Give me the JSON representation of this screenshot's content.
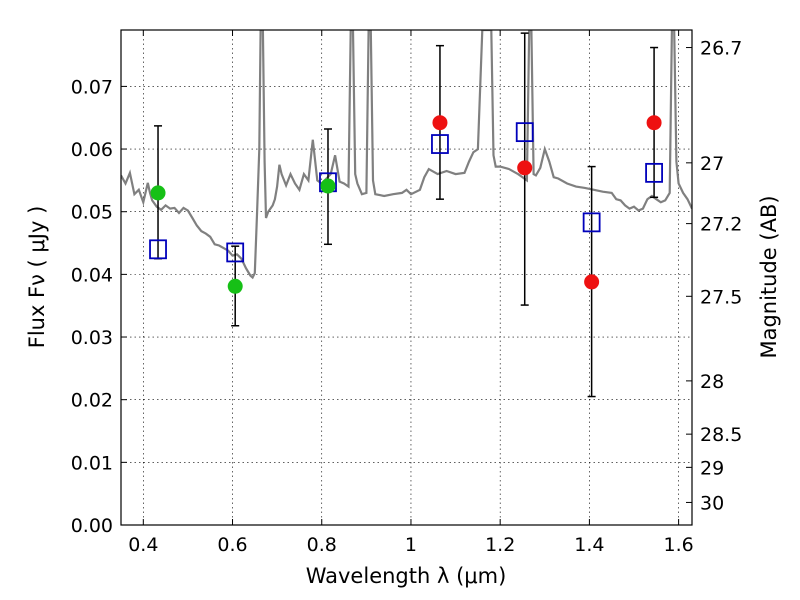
{
  "chart_data": {
    "type": "scatter",
    "xlabel": "Wavelength  λ (μm)",
    "ylabel": "Flux  Fν  ( μJy )",
    "ylabel_right": "Magnitude (AB)",
    "xlim": [
      0.35,
      1.63
    ],
    "ylim": [
      0.0,
      0.079
    ],
    "grid": true,
    "x_ticks": [
      0.4,
      0.6,
      0.8,
      1.0,
      1.2,
      1.4,
      1.6
    ],
    "x_tick_labels": [
      "0.4",
      "0.6",
      "0.8",
      "1",
      "1.2",
      "1.4",
      "1.6"
    ],
    "y_ticks": [
      0.0,
      0.01,
      0.02,
      0.03,
      0.04,
      0.05,
      0.06,
      0.07
    ],
    "y_tick_labels": [
      "0.00",
      "0.01",
      "0.02",
      "0.03",
      "0.04",
      "0.05",
      "0.06",
      "0.07"
    ],
    "right_ticks": [
      {
        "label": "26.7",
        "flux": 0.0762
      },
      {
        "label": "27",
        "flux": 0.0578
      },
      {
        "label": "27.2",
        "flux": 0.0481
      },
      {
        "label": "27.5",
        "flux": 0.0365
      },
      {
        "label": "28",
        "flux": 0.023
      },
      {
        "label": "28.5",
        "flux": 0.0145
      },
      {
        "label": "29",
        "flux": 0.0092
      },
      {
        "label": "30",
        "flux": 0.0036
      }
    ],
    "series": [
      {
        "type": "line",
        "color": "#808080",
        "points": [
          [
            0.35,
            0.0558
          ],
          [
            0.36,
            0.0545
          ],
          [
            0.37,
            0.0562
          ],
          [
            0.38,
            0.0528
          ],
          [
            0.39,
            0.0535
          ],
          [
            0.4,
            0.0515
          ],
          [
            0.41,
            0.0546
          ],
          [
            0.415,
            0.053
          ],
          [
            0.42,
            0.0518
          ],
          [
            0.43,
            0.0508
          ],
          [
            0.44,
            0.0503
          ],
          [
            0.45,
            0.051
          ],
          [
            0.46,
            0.0505
          ],
          [
            0.47,
            0.0506
          ],
          [
            0.48,
            0.0498
          ],
          [
            0.49,
            0.0506
          ],
          [
            0.5,
            0.0502
          ],
          [
            0.51,
            0.049
          ],
          [
            0.52,
            0.0478
          ],
          [
            0.53,
            0.0469
          ],
          [
            0.54,
            0.0465
          ],
          [
            0.55,
            0.046
          ],
          [
            0.56,
            0.0448
          ],
          [
            0.57,
            0.0446
          ],
          [
            0.58,
            0.0442
          ],
          [
            0.59,
            0.0438
          ],
          [
            0.6,
            0.043
          ],
          [
            0.61,
            0.0432
          ],
          [
            0.62,
            0.0425
          ],
          [
            0.63,
            0.041
          ],
          [
            0.64,
            0.0398
          ],
          [
            0.645,
            0.0395
          ],
          [
            0.65,
            0.0402
          ],
          [
            0.655,
            0.05
          ],
          [
            0.66,
            0.06
          ],
          [
            0.663,
            0.079
          ],
          [
            0.668,
            0.079
          ],
          [
            0.672,
            0.058
          ],
          [
            0.675,
            0.049
          ],
          [
            0.68,
            0.05
          ],
          [
            0.69,
            0.051
          ],
          [
            0.695,
            0.052
          ],
          [
            0.7,
            0.054
          ],
          [
            0.705,
            0.0575
          ],
          [
            0.71,
            0.056
          ],
          [
            0.72,
            0.0542
          ],
          [
            0.73,
            0.056
          ],
          [
            0.74,
            0.0545
          ],
          [
            0.75,
            0.0535
          ],
          [
            0.76,
            0.056
          ],
          [
            0.77,
            0.055
          ],
          [
            0.78,
            0.0615
          ],
          [
            0.79,
            0.055
          ],
          [
            0.8,
            0.0545
          ],
          [
            0.82,
            0.056
          ],
          [
            0.83,
            0.059
          ],
          [
            0.84,
            0.0548
          ],
          [
            0.85,
            0.0545
          ],
          [
            0.86,
            0.054
          ],
          [
            0.865,
            0.079
          ],
          [
            0.87,
            0.079
          ],
          [
            0.875,
            0.056
          ],
          [
            0.88,
            0.0545
          ],
          [
            0.89,
            0.0528
          ],
          [
            0.9,
            0.053
          ],
          [
            0.905,
            0.079
          ],
          [
            0.91,
            0.079
          ],
          [
            0.915,
            0.055
          ],
          [
            0.92,
            0.0528
          ],
          [
            0.94,
            0.0525
          ],
          [
            0.96,
            0.0528
          ],
          [
            0.98,
            0.053
          ],
          [
            0.99,
            0.0535
          ],
          [
            1.0,
            0.0528
          ],
          [
            1.02,
            0.0535
          ],
          [
            1.03,
            0.0555
          ],
          [
            1.04,
            0.0568
          ],
          [
            1.06,
            0.056
          ],
          [
            1.08,
            0.0565
          ],
          [
            1.1,
            0.056
          ],
          [
            1.12,
            0.0562
          ],
          [
            1.13,
            0.058
          ],
          [
            1.14,
            0.0595
          ],
          [
            1.15,
            0.06
          ],
          [
            1.16,
            0.079
          ],
          [
            1.18,
            0.079
          ],
          [
            1.185,
            0.059
          ],
          [
            1.19,
            0.0572
          ],
          [
            1.2,
            0.0572
          ],
          [
            1.22,
            0.0568
          ],
          [
            1.24,
            0.056
          ],
          [
            1.25,
            0.0555
          ],
          [
            1.26,
            0.055
          ],
          [
            1.265,
            0.079
          ],
          [
            1.27,
            0.079
          ],
          [
            1.275,
            0.056
          ],
          [
            1.28,
            0.0558
          ],
          [
            1.29,
            0.057
          ],
          [
            1.3,
            0.06
          ],
          [
            1.31,
            0.058
          ],
          [
            1.32,
            0.0555
          ],
          [
            1.33,
            0.0553
          ],
          [
            1.35,
            0.0545
          ],
          [
            1.37,
            0.054
          ],
          [
            1.39,
            0.0538
          ],
          [
            1.41,
            0.0535
          ],
          [
            1.43,
            0.0532
          ],
          [
            1.45,
            0.053
          ],
          [
            1.46,
            0.052
          ],
          [
            1.47,
            0.0518
          ],
          [
            1.48,
            0.051
          ],
          [
            1.49,
            0.0505
          ],
          [
            1.5,
            0.0508
          ],
          [
            1.51,
            0.0502
          ],
          [
            1.52,
            0.0505
          ],
          [
            1.53,
            0.052
          ],
          [
            1.54,
            0.0525
          ],
          [
            1.55,
            0.052
          ],
          [
            1.56,
            0.0515
          ],
          [
            1.57,
            0.0518
          ],
          [
            1.58,
            0.053
          ],
          [
            1.585,
            0.079
          ],
          [
            1.59,
            0.079
          ],
          [
            1.595,
            0.058
          ],
          [
            1.6,
            0.0545
          ],
          [
            1.61,
            0.053
          ],
          [
            1.62,
            0.052
          ],
          [
            1.63,
            0.0505
          ]
        ]
      },
      {
        "type": "scatter",
        "marker": "circle",
        "color": "#16c016",
        "points": [
          [
            0.433,
            0.053
          ],
          [
            0.606,
            0.0381
          ],
          [
            0.814,
            0.0541
          ]
        ]
      },
      {
        "type": "scatter",
        "marker": "circle",
        "color": "#ee1111",
        "points": [
          [
            1.065,
            0.0642
          ],
          [
            1.255,
            0.057
          ],
          [
            1.405,
            0.0388
          ],
          [
            1.545,
            0.0642
          ]
        ]
      },
      {
        "type": "scatter",
        "marker": "square-open",
        "color": "#0000bb",
        "points": [
          [
            0.433,
            0.044
          ],
          [
            0.606,
            0.0435
          ],
          [
            0.814,
            0.0547
          ],
          [
            1.065,
            0.0608
          ],
          [
            1.255,
            0.0627
          ],
          [
            1.405,
            0.0483
          ],
          [
            1.545,
            0.0562
          ]
        ]
      },
      {
        "type": "errorbar",
        "color": "#000000",
        "bars": [
          {
            "x": 0.433,
            "low": 0.0425,
            "high": 0.0637
          },
          {
            "x": 0.606,
            "low": 0.0318,
            "high": 0.0445
          },
          {
            "x": 0.814,
            "low": 0.0448,
            "high": 0.0632
          },
          {
            "x": 1.065,
            "low": 0.052,
            "high": 0.0765
          },
          {
            "x": 1.255,
            "low": 0.0351,
            "high": 0.0785
          },
          {
            "x": 1.405,
            "low": 0.0205,
            "high": 0.0572
          },
          {
            "x": 1.545,
            "low": 0.0523,
            "high": 0.0762
          }
        ]
      }
    ]
  }
}
